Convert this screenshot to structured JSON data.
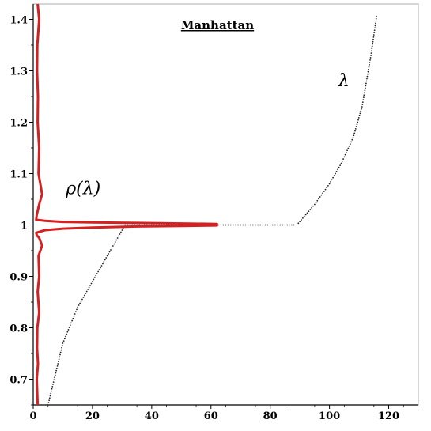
{
  "chart_data": {
    "type": "line",
    "title": "Manhattan",
    "xlabel": "",
    "ylabel": "",
    "xlim": [
      0,
      130
    ],
    "ylim": [
      0.65,
      1.43
    ],
    "x_ticks": [
      0,
      20,
      40,
      60,
      80,
      100,
      120
    ],
    "x_tick_labels": [
      "0",
      "20",
      "40",
      "60",
      "80",
      "100",
      "120"
    ],
    "y_ticks": [
      0.7,
      0.8,
      0.9,
      1.0,
      1.1,
      1.2,
      1.3,
      1.4
    ],
    "y_tick_labels": [
      "0.7",
      "0.8",
      "0.9",
      "1",
      "1.1",
      "1.2",
      "1.3",
      "1.4"
    ],
    "grid": false,
    "annotations": [
      {
        "text": "λ",
        "x": 103,
        "y": 1.27
      },
      {
        "text": "ρ(λ)",
        "x": 11,
        "y": 1.06
      }
    ],
    "series": [
      {
        "label": "λ",
        "style": "dotted",
        "color": "#222222",
        "x": [
          5,
          10,
          15,
          20,
          25,
          30,
          31,
          35,
          40,
          45,
          50,
          55,
          60,
          65,
          70,
          75,
          80,
          85,
          88,
          89,
          92,
          95,
          100,
          104,
          108,
          111,
          114,
          116
        ],
        "y": [
          0.65,
          0.77,
          0.84,
          0.89,
          0.94,
          0.99,
          1.0,
          1.0,
          1.0,
          1.0,
          1.0,
          1.0,
          1.0,
          1.0,
          1.0,
          1.0,
          1.0,
          1.0,
          1.0,
          1.0,
          1.02,
          1.04,
          1.08,
          1.12,
          1.17,
          1.23,
          1.33,
          1.41
        ]
      },
      {
        "label": "ρ(λ)",
        "style": "solid",
        "color": "#d42020",
        "x": [
          1.5,
          1.2,
          1.6,
          1.3,
          1.4,
          2.0,
          1.5,
          2.0,
          1.8,
          3.0,
          2.0,
          1.2,
          1.0,
          4.0,
          10,
          20,
          35,
          50,
          62,
          62,
          50,
          35,
          20,
          10,
          4.0,
          1.0,
          1.2,
          2.0,
          3.0,
          1.8,
          2.0,
          1.5,
          1.6,
          1.3,
          1.4,
          2.0,
          1.5
        ],
        "y": [
          0.65,
          0.7,
          0.73,
          0.76,
          0.8,
          0.83,
          0.87,
          0.9,
          0.94,
          0.96,
          0.975,
          0.98,
          0.985,
          0.99,
          0.993,
          0.995,
          0.997,
          0.998,
          0.999,
          1.002,
          1.003,
          1.004,
          1.005,
          1.006,
          1.008,
          1.01,
          1.02,
          1.04,
          1.06,
          1.1,
          1.15,
          1.2,
          1.25,
          1.3,
          1.35,
          1.4,
          1.43
        ]
      }
    ]
  }
}
